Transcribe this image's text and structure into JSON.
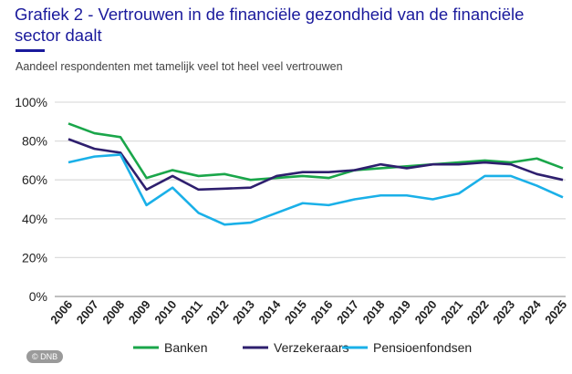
{
  "chart_data": {
    "type": "line",
    "title": "Grafiek 2 - Vertrouwen in de financiële gezondheid van de financiële sector daalt",
    "subtitle": "Aandeel respondenten met tamelijk veel tot heel veel vertrouwen",
    "xlabel": "",
    "ylabel": "",
    "ylim": [
      0,
      100
    ],
    "yticks": [
      "0%",
      "20%",
      "40%",
      "60%",
      "80%",
      "100%"
    ],
    "x": [
      "2006",
      "2007",
      "2008",
      "2009",
      "2010",
      "2011",
      "2012",
      "2013",
      "2014",
      "2015",
      "2016",
      "2017",
      "2018",
      "2019",
      "2020",
      "2021",
      "2022",
      "2023",
      "2024",
      "2025"
    ],
    "grid": true,
    "legend": "bottom",
    "series": [
      {
        "name": "Banken",
        "color": "#1aa64a",
        "values": [
          89,
          84,
          82,
          61,
          65,
          62,
          63,
          60,
          61,
          62,
          61,
          65,
          66,
          67,
          68,
          69,
          70,
          69,
          71,
          66
        ]
      },
      {
        "name": "Verzekeraars",
        "color": "#2e1f6e",
        "values": [
          81,
          76,
          74,
          55,
          62,
          55,
          55.5,
          56,
          62,
          64,
          64,
          65,
          68,
          66,
          68,
          68,
          69,
          68,
          63,
          60
        ]
      },
      {
        "name": "Pensioenfondsen",
        "color": "#1ab0e8",
        "values": [
          69,
          72,
          73,
          47,
          56,
          43,
          37,
          38,
          43,
          48,
          47,
          50,
          52,
          52,
          50,
          53,
          62,
          62,
          57,
          51
        ]
      }
    ]
  },
  "copyright": "© DNB"
}
